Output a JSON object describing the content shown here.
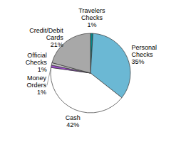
{
  "chart_data": {
    "type": "pie",
    "categories": [
      "Travelers\nChecks",
      "Personal\nChecks",
      "Cash",
      "Money\nOrders",
      "Official\nChecks",
      "Credit/Debit\nCards"
    ],
    "values": [
      1,
      35,
      42,
      1,
      1,
      21
    ],
    "value_labels": [
      "1%",
      "35%",
      "42%",
      "1%",
      "1%",
      "21%"
    ],
    "colors": [
      "#008B8B",
      "#6BB8D4",
      "#ffffff",
      "#9B4DCA",
      "#C8C8C8",
      "#A8A8A8"
    ]
  }
}
